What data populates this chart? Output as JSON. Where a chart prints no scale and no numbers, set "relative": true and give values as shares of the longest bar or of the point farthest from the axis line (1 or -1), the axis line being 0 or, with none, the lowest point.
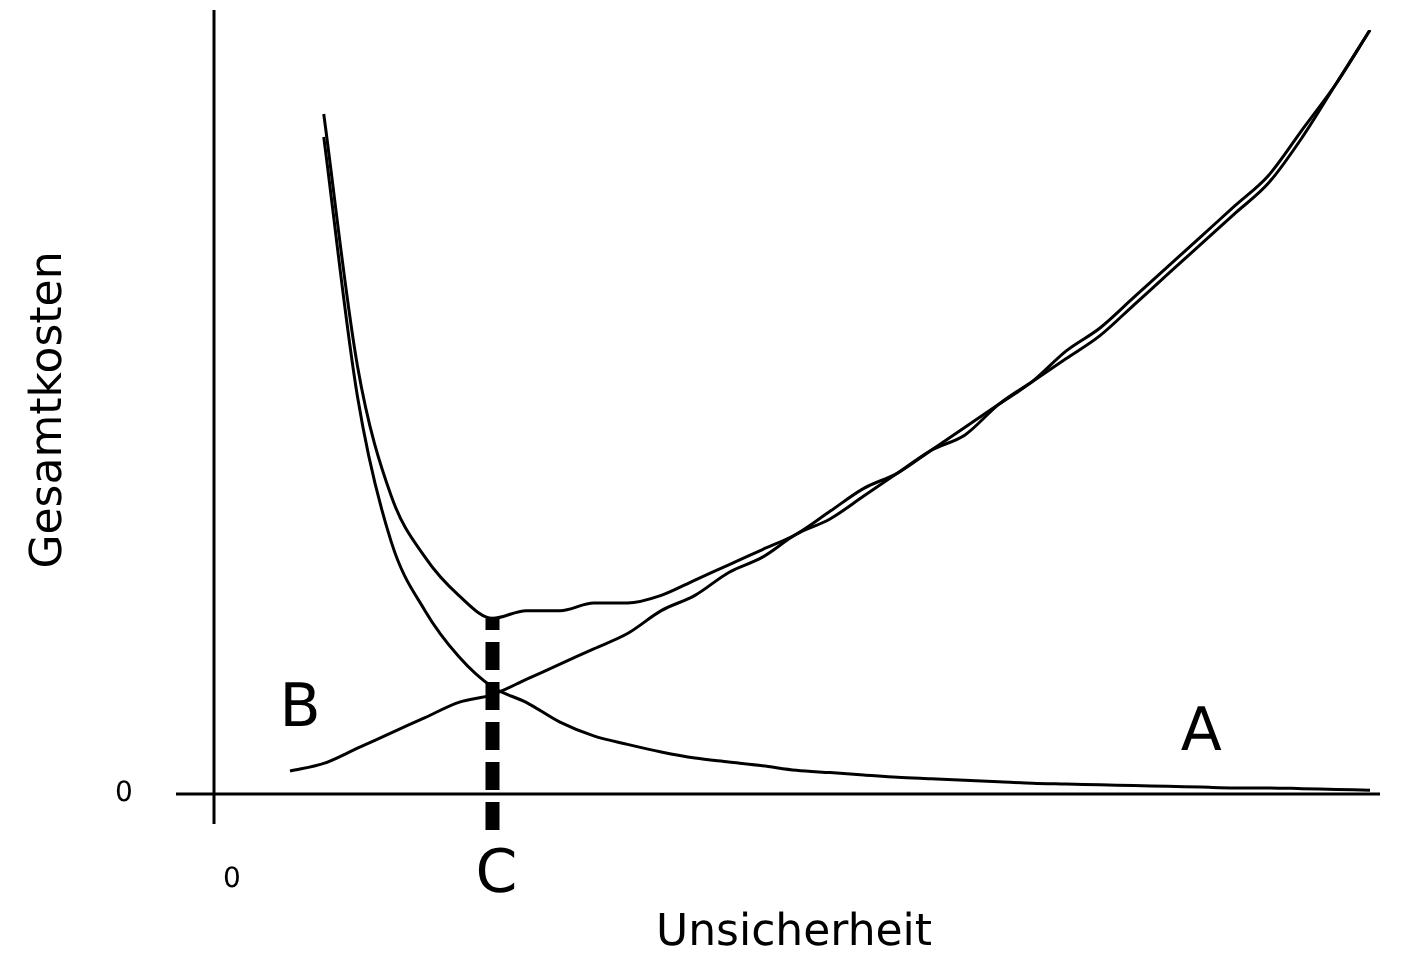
{
  "chart_data": {
    "type": "line",
    "relative": true,
    "xlabel": "Unsicherheit",
    "ylabel": "Gesamtkosten",
    "marker": "none",
    "legend": false,
    "categories": [
      null,
      null,
      null,
      null,
      null,
      null,
      null,
      null,
      null,
      null,
      null,
      null,
      null,
      null,
      null,
      null,
      null,
      null,
      null,
      null,
      null,
      null,
      null,
      null,
      null,
      null,
      null,
      null,
      null,
      null,
      null,
      null,
      null
    ],
    "series": [
      {
        "name": "A",
        "color": "#000000",
        "values": [
          null,
          0.86,
          0.52,
          0.33,
          0.24,
          0.18,
          0.14,
          0.12,
          0.094,
          0.076,
          0.065,
          0.055,
          0.047,
          0.042,
          0.037,
          0.031,
          0.028,
          0.025,
          0.022,
          0.02,
          0.018,
          0.016,
          0.014,
          0.013,
          0.012,
          0.011,
          0.01,
          0.009,
          0.008,
          0.008,
          0.007,
          0.006,
          0.005
        ]
      },
      {
        "name": "B",
        "color": "#000000",
        "values": [
          0.03,
          0.04,
          0.06,
          0.08,
          0.1,
          0.12,
          0.13,
          0.15,
          0.17,
          0.19,
          0.21,
          0.24,
          0.26,
          0.29,
          0.31,
          0.34,
          0.36,
          0.39,
          0.42,
          0.45,
          0.47,
          0.51,
          0.54,
          0.57,
          0.6,
          0.64,
          0.68,
          0.72,
          0.76,
          0.8,
          0.86,
          0.93,
          1
        ]
      },
      {
        "color": "#000000",
        "values": [
          null,
          0.89,
          0.56,
          0.39,
          0.31,
          0.26,
          0.23,
          0.24,
          0.24,
          0.25,
          0.25,
          0.26,
          0.28,
          0.3,
          0.32,
          0.34,
          0.37,
          0.4,
          0.42,
          0.45,
          0.48,
          0.51,
          0.54,
          0.58,
          0.61,
          0.65,
          0.69,
          0.73,
          0.77,
          0.81,
          0.87,
          0.93,
          1
        ]
      }
    ],
    "annotations": [
      "0",
      "0",
      "C"
    ]
  }
}
